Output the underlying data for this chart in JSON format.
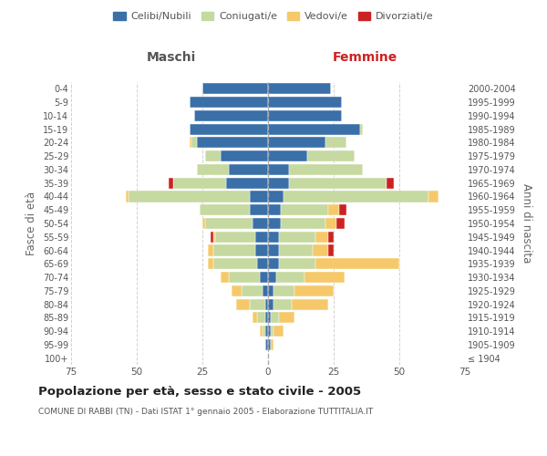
{
  "age_groups": [
    "100+",
    "95-99",
    "90-94",
    "85-89",
    "80-84",
    "75-79",
    "70-74",
    "65-69",
    "60-64",
    "55-59",
    "50-54",
    "45-49",
    "40-44",
    "35-39",
    "30-34",
    "25-29",
    "20-24",
    "15-19",
    "10-14",
    "5-9",
    "0-4"
  ],
  "birth_years": [
    "≤ 1904",
    "1905-1909",
    "1910-1914",
    "1915-1919",
    "1920-1924",
    "1925-1929",
    "1930-1934",
    "1935-1939",
    "1940-1944",
    "1945-1949",
    "1950-1954",
    "1955-1959",
    "1960-1964",
    "1965-1969",
    "1970-1974",
    "1975-1979",
    "1980-1984",
    "1985-1989",
    "1990-1994",
    "1995-1999",
    "2000-2004"
  ],
  "males": {
    "celibi": [
      0,
      1,
      1,
      1,
      1,
      2,
      3,
      4,
      5,
      5,
      6,
      7,
      7,
      16,
      15,
      18,
      27,
      30,
      28,
      30,
      25
    ],
    "coniugati": [
      0,
      0,
      1,
      3,
      6,
      8,
      12,
      17,
      16,
      15,
      18,
      19,
      46,
      20,
      12,
      6,
      2,
      0,
      0,
      0,
      0
    ],
    "vedovi": [
      0,
      0,
      1,
      2,
      5,
      4,
      3,
      2,
      2,
      1,
      1,
      0,
      1,
      0,
      0,
      0,
      1,
      0,
      0,
      0,
      0
    ],
    "divorziati": [
      0,
      0,
      0,
      0,
      0,
      0,
      0,
      0,
      0,
      1,
      0,
      0,
      0,
      2,
      0,
      0,
      0,
      0,
      0,
      0,
      0
    ]
  },
  "females": {
    "nubili": [
      0,
      1,
      1,
      1,
      2,
      2,
      3,
      4,
      4,
      4,
      5,
      5,
      6,
      8,
      8,
      15,
      22,
      35,
      28,
      28,
      24
    ],
    "coniugate": [
      0,
      0,
      1,
      3,
      7,
      8,
      11,
      14,
      13,
      14,
      17,
      18,
      55,
      37,
      28,
      18,
      8,
      1,
      0,
      0,
      0
    ],
    "vedove": [
      0,
      1,
      4,
      6,
      14,
      15,
      15,
      32,
      6,
      5,
      4,
      4,
      4,
      0,
      0,
      0,
      0,
      0,
      0,
      0,
      0
    ],
    "divorziate": [
      0,
      0,
      0,
      0,
      0,
      0,
      0,
      0,
      2,
      2,
      3,
      3,
      0,
      3,
      0,
      0,
      0,
      0,
      0,
      0,
      0
    ]
  },
  "colors": {
    "celibi": "#3a6fa8",
    "coniugati": "#c5d9a0",
    "vedovi": "#f5c96a",
    "divorziati": "#cc2222"
  },
  "title": "Popolazione per età, sesso e stato civile - 2005",
  "subtitle": "COMUNE DI RABBI (TN) - Dati ISTAT 1° gennaio 2005 - Elaborazione TUTTITALIA.IT",
  "xlabel_left": "Maschi",
  "xlabel_right": "Femmine",
  "ylabel_left": "Fasce di età",
  "ylabel_right": "Anni di nascita",
  "xlim": 75,
  "legend_labels": [
    "Celibi/Nubili",
    "Coniugati/e",
    "Vedovi/e",
    "Divorziati/e"
  ],
  "bg_color": "#ffffff",
  "grid_color": "#cccccc"
}
